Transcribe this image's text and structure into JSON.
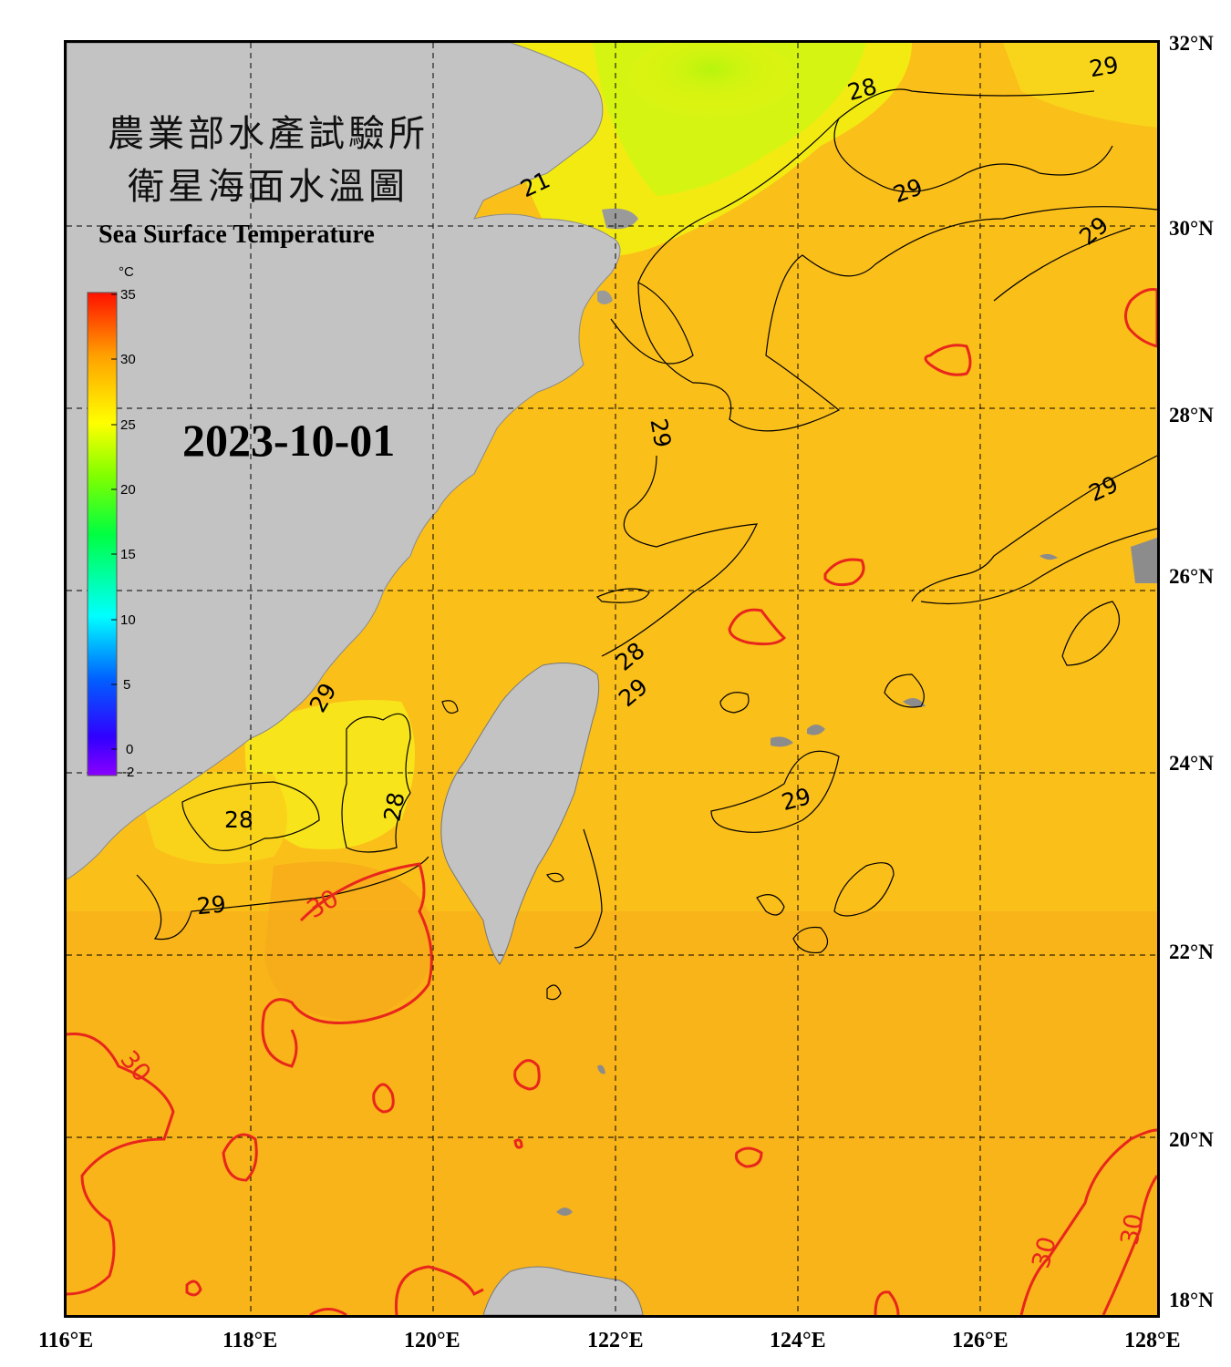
{
  "title": {
    "org_zh": "農業部水產試驗所",
    "map_zh": "衛星海面水溫圖",
    "en": "Sea Surface Temperature"
  },
  "date": "2023-10-01",
  "colorbar": {
    "unit": "°C",
    "min": -2,
    "max": 35,
    "ticks": [
      "35",
      "30",
      "25",
      "20",
      "15",
      "10",
      "5",
      "0",
      "-2"
    ],
    "stops": [
      "#7a00ff",
      "#0000ff",
      "#00a0ff",
      "#00ffff",
      "#00ff66",
      "#66ff00",
      "#ffff00",
      "#ffb000",
      "#ff6000",
      "#ff1800"
    ]
  },
  "axes": {
    "lat_labels": [
      "32°N",
      "30°N",
      "28°N",
      "26°N",
      "24°N",
      "22°N",
      "20°N",
      "18°N"
    ],
    "lon_labels": [
      "116°E",
      "118°E",
      "120°E",
      "122°E",
      "124°E",
      "126°E",
      "128°E"
    ],
    "lat_range": [
      18,
      32
    ],
    "lon_range": [
      116,
      128
    ]
  },
  "contour_labels": {
    "black": [
      "28",
      "29",
      "29",
      "29",
      "21",
      "29",
      "29",
      "28",
      "29",
      "29",
      "28",
      "28",
      "29",
      "29",
      "29"
    ],
    "red": [
      "30",
      "30",
      "30",
      "30"
    ]
  },
  "colors": {
    "sea_warm": "#f7b21a",
    "sea_mid": "#fbc81c",
    "sea_cool": "#f4ee10",
    "sea_cold": "#c6f210",
    "land": "#c3c3c3",
    "frame": "#000000",
    "contour_black": "#000000",
    "contour_red": "#e8261c"
  }
}
